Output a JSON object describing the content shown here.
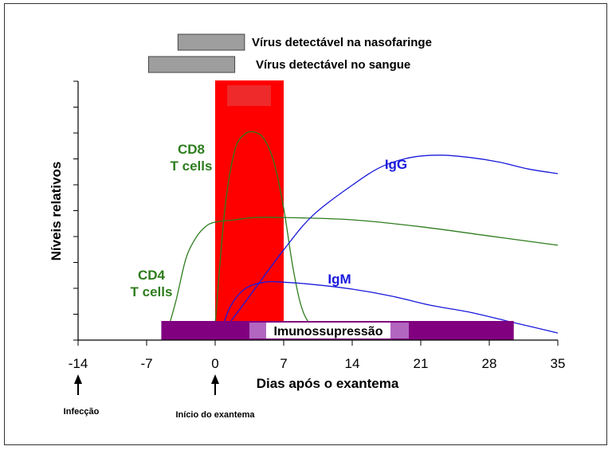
{
  "chart_data": {
    "type": "line",
    "xlabel": "Dias após o exantema",
    "ylabel": "Níveis relativos",
    "xlim": [
      -14,
      35
    ],
    "x_ticks": [
      -14,
      -7,
      0,
      7,
      14,
      21,
      28,
      35
    ],
    "grid": false,
    "series": [
      {
        "name": "CD8 T cells",
        "label_lines": [
          "CD8",
          "T cells"
        ],
        "color": "#2e7d1e",
        "x": [
          0,
          1,
          2,
          3,
          4,
          5,
          6,
          7,
          8,
          9,
          10.5
        ],
        "y": [
          0.05,
          0.55,
          0.8,
          0.87,
          0.88,
          0.85,
          0.75,
          0.55,
          0.28,
          0.1,
          0.0
        ]
      },
      {
        "name": "CD4 T cells",
        "label_lines": [
          "CD4",
          "T cells"
        ],
        "color": "#2e7d1e",
        "x": [
          -5,
          -4,
          -3,
          -2,
          -1,
          0,
          2,
          4,
          7,
          14,
          21,
          28,
          35
        ],
        "y": [
          0.0,
          0.15,
          0.33,
          0.42,
          0.47,
          0.49,
          0.5,
          0.51,
          0.51,
          0.5,
          0.47,
          0.43,
          0.39
        ]
      },
      {
        "name": "IgG",
        "color": "#1a1adc",
        "x": [
          0.5,
          3,
          7,
          10,
          14,
          17,
          20,
          23,
          26,
          29,
          32,
          35
        ],
        "y": [
          0.0,
          0.14,
          0.37,
          0.52,
          0.65,
          0.73,
          0.77,
          0.78,
          0.77,
          0.75,
          0.72,
          0.7
        ]
      },
      {
        "name": "IgM",
        "color": "#1a1adc",
        "x": [
          0.5,
          1.5,
          3,
          5,
          7,
          10,
          14,
          18,
          22,
          26,
          30,
          33,
          35
        ],
        "y": [
          0.0,
          0.12,
          0.2,
          0.23,
          0.23,
          0.22,
          0.2,
          0.17,
          0.13,
          0.1,
          0.06,
          0.03,
          0.01
        ]
      }
    ],
    "bars": [
      {
        "label": "Vírus detectável na nasofaringe",
        "x_start": -3.8,
        "x_end": 3,
        "color": "#9e9e9e"
      },
      {
        "label": "Vírus detectável no sangue",
        "x_start": -6.8,
        "x_end": 2,
        "color": "#9e9e9e"
      }
    ],
    "highlight_band": {
      "x_start": 0,
      "x_end": 7,
      "color": "#ff0000"
    },
    "immunosuppression_bar": {
      "label": "Imunossupressão",
      "x_start": -5.5,
      "x_end": 30.5,
      "color": "#800080",
      "highlight_color": "#b266c0"
    },
    "events": [
      {
        "label": "Infecção",
        "x": -14
      },
      {
        "label": "Início do exantema",
        "x": 0
      }
    ]
  }
}
